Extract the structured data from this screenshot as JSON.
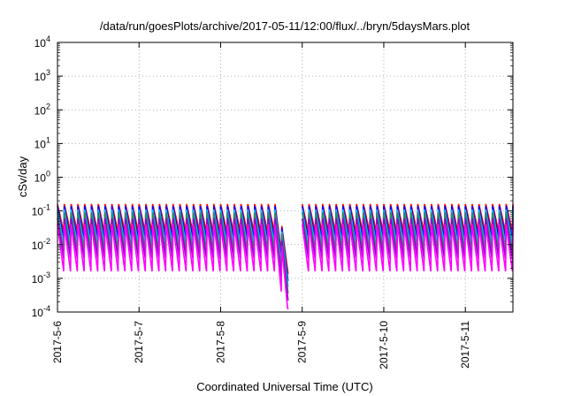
{
  "chart_data": {
    "type": "line",
    "title": "/data/run/goesPlots/archive/2017-05-11/12:00/flux/../bryn/5daysMars.plot",
    "xlabel": "Coordinated Universal Time (UTC)",
    "ylabel": "cSv/day",
    "yscale": "log",
    "ylim": [
      0.0001,
      10000
    ],
    "xlim": [
      "2017-05-06",
      "2017-05-11 14:00"
    ],
    "grid": true,
    "y_ticks": [
      {
        "base": "10",
        "exp": "-4"
      },
      {
        "base": "10",
        "exp": "-3"
      },
      {
        "base": "10",
        "exp": "-2"
      },
      {
        "base": "10",
        "exp": "-1"
      },
      {
        "base": "10",
        "exp": "0"
      },
      {
        "base": "10",
        "exp": "1"
      },
      {
        "base": "10",
        "exp": "2"
      },
      {
        "base": "10",
        "exp": "3"
      },
      {
        "base": "10",
        "exp": "4"
      }
    ],
    "x_ticks": [
      "2017-5-6",
      "2017-5-7",
      "2017-5-8",
      "2017-5-9",
      "2017-5-10",
      "2017-5-11"
    ],
    "sawtooth_period_hours": 2,
    "gap": {
      "start": "2017-05-08 20:00",
      "end": "2017-05-09 00:00"
    },
    "series": [
      {
        "color": "#ff0000",
        "peak": 0.16,
        "trough": 0.02
      },
      {
        "color": "#0000ff",
        "peak": 0.14,
        "trough": 0.012
      },
      {
        "color": "#00bfff",
        "peak": 0.11,
        "trough": 0.008
      },
      {
        "color": "#2e8b57",
        "peak": 0.09,
        "trough": 0.005
      },
      {
        "color": "#9400d3",
        "peak": 0.06,
        "trough": 0.003
      },
      {
        "color": "#ff00ff",
        "peak": 0.04,
        "trough": 0.0012
      }
    ]
  }
}
